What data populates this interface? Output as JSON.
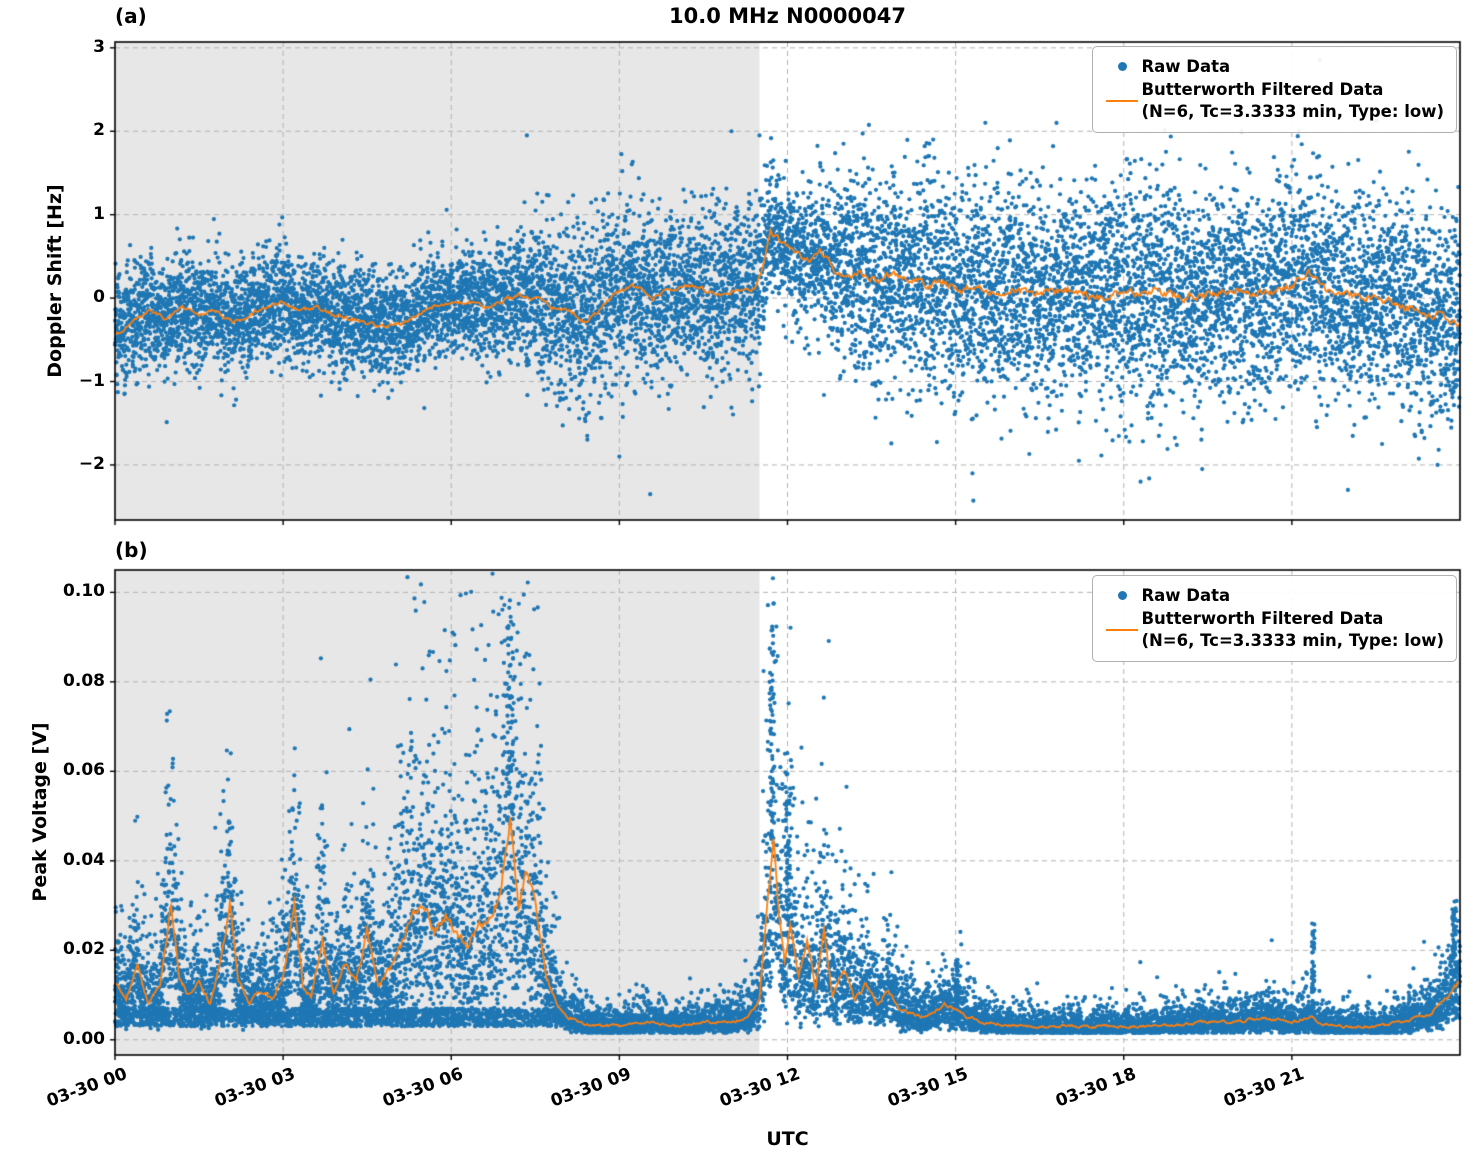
{
  "colors": {
    "raw": "#1f77b4",
    "filtered": "#ff7f0e",
    "shading": "#e7e7e7",
    "grid": "#b3b3b3",
    "spine": "#000000"
  },
  "axes": {
    "xlabel": "UTC",
    "xtick_hours": [
      0,
      3,
      6,
      9,
      12,
      15,
      18,
      21
    ],
    "xtick_labels": [
      "03-30 00",
      "03-30 03",
      "03-30 06",
      "03-30 09",
      "03-30 12",
      "03-30 15",
      "03-30 18",
      "03-30 21"
    ],
    "x_hours_range": [
      0,
      24
    ]
  },
  "chart_data": [
    {
      "id": "a",
      "type": "scatter",
      "panel_label": "(a)",
      "title": "10.0 MHz N0000047",
      "ylabel": "Doppler Shift [Hz]",
      "ytick_values": [
        3,
        2,
        1,
        0,
        -1,
        -2
      ],
      "ytick_labels": [
        "3",
        "2",
        "1",
        "0",
        "−1",
        "−2"
      ],
      "ylim": [
        -2.66,
        3.07
      ],
      "grid": true,
      "legend_position": "upper right",
      "shaded_region_hours": [
        0,
        11.5
      ],
      "series": [
        {
          "name": "Raw Data",
          "type": "scatter",
          "color": "#1f77b4"
        },
        {
          "name": "Butterworth Filtered Data",
          "name_line2": "(N=6, Tc=3.3333 min, Type: low)",
          "type": "line",
          "color": "#ff7f0e"
        }
      ],
      "filtered_points": [
        [
          0,
          -0.45
        ],
        [
          0.3,
          -0.3
        ],
        [
          0.6,
          -0.15
        ],
        [
          0.9,
          -0.25
        ],
        [
          1.2,
          -0.1
        ],
        [
          1.5,
          -0.2
        ],
        [
          1.8,
          -0.15
        ],
        [
          2.1,
          -0.3
        ],
        [
          2.4,
          -0.2
        ],
        [
          2.7,
          -0.1
        ],
        [
          3,
          -0.05
        ],
        [
          3.3,
          -0.15
        ],
        [
          3.6,
          -0.1
        ],
        [
          3.9,
          -0.2
        ],
        [
          4.2,
          -0.25
        ],
        [
          4.5,
          -0.3
        ],
        [
          4.8,
          -0.35
        ],
        [
          5.1,
          -0.3
        ],
        [
          5.4,
          -0.2
        ],
        [
          5.7,
          -0.1
        ],
        [
          6,
          -0.05
        ],
        [
          6.3,
          -0.05
        ],
        [
          6.6,
          -0.1
        ],
        [
          6.9,
          -0.05
        ],
        [
          7.2,
          0.05
        ],
        [
          7.5,
          0
        ],
        [
          7.8,
          -0.1
        ],
        [
          8.1,
          -0.15
        ],
        [
          8.4,
          -0.3
        ],
        [
          8.7,
          -0.1
        ],
        [
          9,
          0.1
        ],
        [
          9.3,
          0.15
        ],
        [
          9.6,
          0
        ],
        [
          9.9,
          0.1
        ],
        [
          10.2,
          0.15
        ],
        [
          10.5,
          0.1
        ],
        [
          10.8,
          0.05
        ],
        [
          11.1,
          0.1
        ],
        [
          11.4,
          0.1
        ],
        [
          11.55,
          0.35
        ],
        [
          11.7,
          0.8
        ],
        [
          11.85,
          0.7
        ],
        [
          12,
          0.6
        ],
        [
          12.2,
          0.5
        ],
        [
          12.4,
          0.45
        ],
        [
          12.6,
          0.55
        ],
        [
          12.8,
          0.35
        ],
        [
          13,
          0.25
        ],
        [
          13.3,
          0.3
        ],
        [
          13.6,
          0.2
        ],
        [
          13.9,
          0.3
        ],
        [
          14.2,
          0.25
        ],
        [
          14.5,
          0.15
        ],
        [
          14.8,
          0.2
        ],
        [
          15.1,
          0.1
        ],
        [
          15.4,
          0.15
        ],
        [
          15.7,
          0.05
        ],
        [
          16,
          0.1
        ],
        [
          16.5,
          0.05
        ],
        [
          17,
          0.1
        ],
        [
          17.5,
          0
        ],
        [
          18,
          0.05
        ],
        [
          18.5,
          0.1
        ],
        [
          19,
          0
        ],
        [
          19.5,
          0.05
        ],
        [
          20,
          0.1
        ],
        [
          20.5,
          0.05
        ],
        [
          21,
          0.15
        ],
        [
          21.3,
          0.3
        ],
        [
          21.6,
          0.1
        ],
        [
          22,
          0.05
        ],
        [
          22.5,
          0
        ],
        [
          23,
          -0.1
        ],
        [
          23.5,
          -0.2
        ],
        [
          24,
          -0.3
        ]
      ],
      "scatter_std_points": [
        [
          0,
          0.33
        ],
        [
          7,
          0.33
        ],
        [
          7.5,
          0.5
        ],
        [
          11.5,
          0.5
        ],
        [
          11.7,
          0.35
        ],
        [
          12.3,
          0.4
        ],
        [
          13.5,
          0.62
        ],
        [
          24,
          0.62
        ]
      ],
      "line_jitter_points": [
        [
          0,
          0.04
        ],
        [
          11.5,
          0.05
        ],
        [
          12,
          0.08
        ],
        [
          24,
          0.09
        ]
      ],
      "outliers": [
        [
          7.35,
          1.95
        ],
        [
          9.0,
          -1.9
        ],
        [
          9.55,
          -2.35
        ],
        [
          11.0,
          2.0
        ],
        [
          11.5,
          1.95
        ],
        [
          13.0,
          1.85
        ],
        [
          14.6,
          1.9
        ],
        [
          15.3,
          -2.1
        ],
        [
          16.8,
          2.1
        ],
        [
          17.2,
          -1.95
        ],
        [
          18.3,
          -2.2
        ],
        [
          19.4,
          -2.05
        ],
        [
          20.1,
          2.0
        ],
        [
          21.5,
          2.85
        ],
        [
          22.0,
          -2.3
        ],
        [
          22.3,
          2.5
        ],
        [
          23.1,
          2.2
        ],
        [
          23.6,
          -2.0
        ]
      ]
    },
    {
      "id": "b",
      "type": "scatter",
      "panel_label": "(b)",
      "ylabel": "Peak Voltage [V]",
      "ytick_values": [
        0.1,
        0.08,
        0.06,
        0.04,
        0.02,
        0.0
      ],
      "ytick_labels": [
        "0.10",
        "0.08",
        "0.06",
        "0.04",
        "0.02",
        "0.00"
      ],
      "ylim": [
        -0.0034,
        0.105
      ],
      "grid": true,
      "legend_position": "upper right",
      "shaded_region_hours": [
        0,
        11.5
      ],
      "series": [
        {
          "name": "Raw Data",
          "type": "scatter",
          "color": "#1f77b4"
        },
        {
          "name": "Butterworth Filtered Data",
          "name_line2": "(N=6, Tc=3.3333 min, Type: low)",
          "type": "line",
          "color": "#ff7f0e"
        }
      ],
      "filtered_points": [
        [
          0,
          0.013
        ],
        [
          0.2,
          0.009
        ],
        [
          0.4,
          0.016
        ],
        [
          0.6,
          0.008
        ],
        [
          0.8,
          0.012
        ],
        [
          1,
          0.03
        ],
        [
          1.15,
          0.014
        ],
        [
          1.3,
          0.01
        ],
        [
          1.5,
          0.013
        ],
        [
          1.7,
          0.008
        ],
        [
          1.9,
          0.018
        ],
        [
          2.05,
          0.03
        ],
        [
          2.2,
          0.013
        ],
        [
          2.4,
          0.008
        ],
        [
          2.6,
          0.011
        ],
        [
          2.8,
          0.009
        ],
        [
          3,
          0.014
        ],
        [
          3.2,
          0.03
        ],
        [
          3.35,
          0.012
        ],
        [
          3.5,
          0.01
        ],
        [
          3.7,
          0.022
        ],
        [
          3.9,
          0.011
        ],
        [
          4.1,
          0.017
        ],
        [
          4.3,
          0.013
        ],
        [
          4.5,
          0.024
        ],
        [
          4.7,
          0.012
        ],
        [
          4.9,
          0.016
        ],
        [
          5.1,
          0.021
        ],
        [
          5.3,
          0.028
        ],
        [
          5.5,
          0.03
        ],
        [
          5.7,
          0.024
        ],
        [
          5.9,
          0.028
        ],
        [
          6.1,
          0.024
        ],
        [
          6.3,
          0.021
        ],
        [
          6.5,
          0.026
        ],
        [
          6.7,
          0.027
        ],
        [
          6.9,
          0.034
        ],
        [
          7.05,
          0.05
        ],
        [
          7.2,
          0.03
        ],
        [
          7.35,
          0.038
        ],
        [
          7.5,
          0.03
        ],
        [
          7.7,
          0.014
        ],
        [
          7.9,
          0.007
        ],
        [
          8.1,
          0.005
        ],
        [
          8.4,
          0.0035
        ],
        [
          9,
          0.003
        ],
        [
          9.5,
          0.004
        ],
        [
          10,
          0.003
        ],
        [
          10.5,
          0.004
        ],
        [
          11,
          0.004
        ],
        [
          11.3,
          0.005
        ],
        [
          11.5,
          0.009
        ],
        [
          11.65,
          0.032
        ],
        [
          11.75,
          0.045
        ],
        [
          11.85,
          0.028
        ],
        [
          11.95,
          0.018
        ],
        [
          12.05,
          0.026
        ],
        [
          12.2,
          0.014
        ],
        [
          12.35,
          0.022
        ],
        [
          12.5,
          0.011
        ],
        [
          12.65,
          0.024
        ],
        [
          12.8,
          0.01
        ],
        [
          13,
          0.016
        ],
        [
          13.2,
          0.009
        ],
        [
          13.4,
          0.013
        ],
        [
          13.6,
          0.008
        ],
        [
          13.8,
          0.011
        ],
        [
          14,
          0.007
        ],
        [
          14.2,
          0.006
        ],
        [
          14.4,
          0.005
        ],
        [
          14.6,
          0.006
        ],
        [
          14.8,
          0.008
        ],
        [
          15,
          0.007
        ],
        [
          15.2,
          0.005
        ],
        [
          15.5,
          0.004
        ],
        [
          16,
          0.003
        ],
        [
          16.5,
          0.003
        ],
        [
          17,
          0.003
        ],
        [
          17.5,
          0.003
        ],
        [
          18,
          0.003
        ],
        [
          18.5,
          0.003
        ],
        [
          19,
          0.0035
        ],
        [
          19.5,
          0.004
        ],
        [
          20,
          0.004
        ],
        [
          20.5,
          0.005
        ],
        [
          21,
          0.004
        ],
        [
          21.35,
          0.005
        ],
        [
          21.5,
          0.0035
        ],
        [
          22,
          0.003
        ],
        [
          22.5,
          0.003
        ],
        [
          23,
          0.004
        ],
        [
          23.5,
          0.006
        ],
        [
          23.8,
          0.01
        ],
        [
          24,
          0.013
        ]
      ],
      "scatter_sigma_points": [
        [
          0,
          0.45
        ],
        [
          4.5,
          0.45
        ],
        [
          5,
          0.6
        ],
        [
          7.6,
          0.6
        ],
        [
          8,
          0.45
        ],
        [
          11.4,
          0.45
        ],
        [
          11.6,
          0.55
        ],
        [
          13.2,
          0.55
        ],
        [
          13.5,
          0.45
        ],
        [
          24,
          0.45
        ]
      ],
      "spike_events": [
        {
          "hour": 7.05,
          "peak": 0.099,
          "width": 0.12
        },
        {
          "hour": 11.72,
          "peak": 0.093,
          "width": 0.08
        },
        {
          "hour": 12.0,
          "peak": 0.065,
          "width": 0.1
        },
        {
          "hour": 15.02,
          "peak": 0.018,
          "width": 0.04
        },
        {
          "hour": 21.38,
          "peak": 0.026,
          "width": 0.05
        },
        {
          "hour": 23.9,
          "peak": 0.03,
          "width": 0.08
        }
      ]
    }
  ]
}
